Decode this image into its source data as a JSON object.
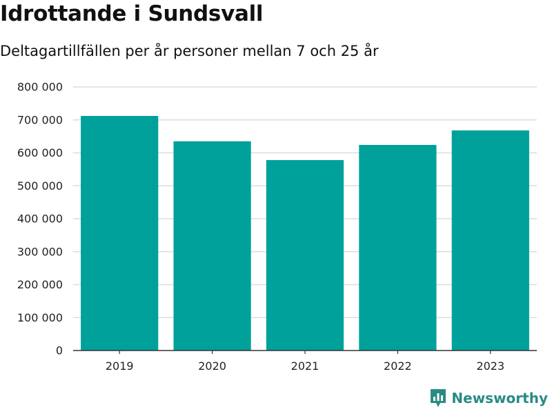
{
  "header": {
    "title": "Idrottande i Sundsvall",
    "subtitle": "Deltagartillfällen per år personer mellan 7 och 25 år"
  },
  "brand": {
    "name": "Newsworthy",
    "icon": "newsworthy-logo-icon",
    "color": "#2a8b86"
  },
  "colors": {
    "bar": "#00a19a",
    "grid": "#dddddd",
    "axis": "#333333"
  },
  "chart_data": {
    "type": "bar",
    "title": "Idrottande i Sundsvall",
    "subtitle": "Deltagartillfällen per år personer mellan 7 och 25 år",
    "categories": [
      "2019",
      "2020",
      "2021",
      "2022",
      "2023"
    ],
    "values": [
      712000,
      635000,
      578000,
      624000,
      668000
    ],
    "ylim": [
      0,
      800000
    ],
    "yticks": [
      0,
      100000,
      200000,
      300000,
      400000,
      500000,
      600000,
      700000,
      800000
    ],
    "ytick_labels": [
      "0",
      "100 000",
      "200 000",
      "300 000",
      "400 000",
      "500 000",
      "600 000",
      "700 000",
      "800 000"
    ],
    "grid": "horizontal",
    "legend": "none"
  }
}
